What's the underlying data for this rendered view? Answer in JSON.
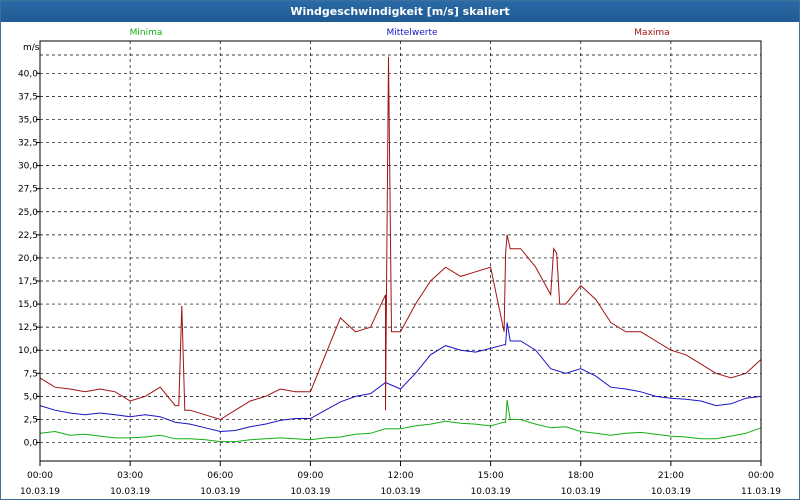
{
  "window": {
    "title": "Windgeschwindigkeit [m/s] skaliert"
  },
  "colors": {
    "min": "#12b012",
    "mean": "#1a14c8",
    "max": "#a01414"
  },
  "chart_data": {
    "type": "line",
    "title": "Windgeschwindigkeit [m/s] skaliert",
    "ylabel": "m/s",
    "xlabel": "",
    "ylim": [
      -2,
      43.5
    ],
    "xlim": [
      0,
      24
    ],
    "grid": true,
    "y_ticks": [
      "0,0",
      "2,5",
      "5,0",
      "7,5",
      "10,0",
      "12,5",
      "15,0",
      "17,5",
      "20,0",
      "22,5",
      "25,0",
      "27,5",
      "30,0",
      "32,5",
      "35,0",
      "37,5",
      "40,0"
    ],
    "x_ticks": [
      {
        "time": "00:00",
        "date": "10.03.19"
      },
      {
        "time": "03:00",
        "date": "10.03.19"
      },
      {
        "time": "06:00",
        "date": "10.03.19"
      },
      {
        "time": "09:00",
        "date": "10.03.19"
      },
      {
        "time": "12:00",
        "date": "10.03.19"
      },
      {
        "time": "15:00",
        "date": "10.03.19"
      },
      {
        "time": "18:00",
        "date": "10.03.19"
      },
      {
        "time": "21:00",
        "date": "10.03.19"
      },
      {
        "time": "00:00",
        "date": "11.03.19"
      }
    ],
    "x_hours": [
      0,
      0.5,
      1,
      1.5,
      2,
      2.5,
      3,
      3.5,
      4,
      4.5,
      5,
      5.5,
      6,
      6.5,
      7,
      7.5,
      8,
      8.5,
      9,
      9.5,
      10,
      10.5,
      11,
      11.5,
      12,
      12.5,
      13,
      13.5,
      14,
      14.5,
      15,
      15.5,
      16,
      16.5,
      17,
      17.5,
      18,
      18.5,
      19,
      19.5,
      20,
      20.5,
      21,
      21.5,
      22,
      22.5,
      23,
      23.5,
      24
    ],
    "series": [
      {
        "name": "Minima",
        "color_key": "min",
        "values": [
          1.0,
          1.2,
          0.8,
          0.9,
          0.7,
          0.5,
          0.5,
          0.6,
          0.8,
          0.4,
          0.4,
          0.3,
          0.1,
          0.1,
          0.3,
          0.4,
          0.5,
          0.4,
          0.3,
          0.5,
          0.6,
          0.9,
          1.0,
          1.5,
          1.5,
          1.8,
          2.0,
          2.3,
          2.1,
          2.0,
          1.8,
          2.2,
          2.5,
          2.0,
          1.6,
          1.7,
          1.2,
          1.0,
          0.8,
          1.0,
          1.1,
          0.9,
          0.7,
          0.6,
          0.4,
          0.4,
          0.7,
          1.0,
          1.6
        ]
      },
      {
        "name": "Mittelwerte",
        "color_key": "mean",
        "values": [
          4.0,
          3.5,
          3.2,
          3.0,
          3.2,
          3.0,
          2.8,
          3.0,
          2.8,
          2.2,
          2.0,
          1.6,
          1.2,
          1.3,
          1.7,
          2.0,
          2.4,
          2.6,
          2.6,
          3.5,
          4.4,
          5.0,
          5.3,
          6.5,
          5.8,
          7.5,
          9.5,
          10.5,
          10.0,
          9.8,
          10.2,
          10.6,
          11.0,
          10.0,
          8.0,
          7.5,
          8.0,
          7.2,
          6.0,
          5.8,
          5.5,
          5.0,
          4.8,
          4.7,
          4.5,
          4.0,
          4.2,
          4.8,
          5.0
        ]
      },
      {
        "name": "Maxima",
        "color_key": "max",
        "values": [
          7.0,
          6.0,
          5.8,
          5.5,
          5.8,
          5.5,
          4.5,
          5.0,
          6.0,
          4.0,
          3.5,
          3.0,
          2.5,
          3.5,
          4.5,
          5.0,
          5.8,
          5.5,
          5.5,
          9.5,
          13.5,
          12.0,
          12.5,
          16.0,
          12.0,
          15.0,
          17.5,
          19.0,
          18.0,
          18.5,
          19.0,
          20.5,
          21.0,
          19.0,
          16.0,
          15.0,
          17.0,
          15.5,
          13.0,
          12.0,
          12.0,
          11.0,
          10.0,
          9.5,
          8.5,
          7.5,
          7.0,
          7.5,
          9.0
        ]
      }
    ],
    "spikes": [
      {
        "series": "Maxima",
        "x": 4.72,
        "value": 14.8
      },
      {
        "series": "Maxima",
        "x": 11.6,
        "value": 41.8
      },
      {
        "series": "Mittelwerte",
        "x": 15.55,
        "value": 13.0
      },
      {
        "series": "Minima",
        "x": 15.55,
        "value": 4.6
      },
      {
        "series": "Maxima",
        "x": 15.55,
        "value": 22.5
      },
      {
        "series": "Maxima",
        "x": 17.2,
        "value": 20.5
      }
    ]
  }
}
